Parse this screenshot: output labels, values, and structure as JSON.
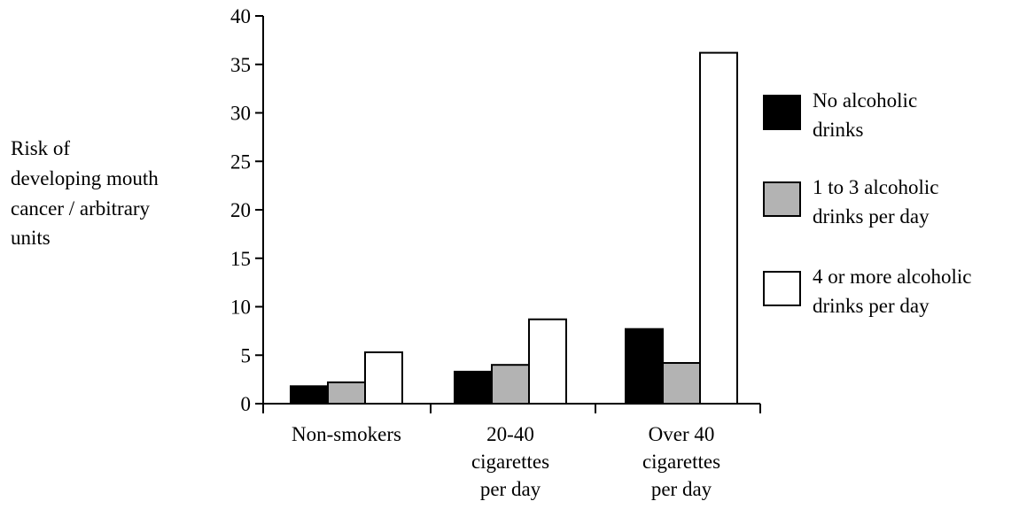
{
  "chart_data": {
    "type": "bar",
    "categories": [
      [
        "Non-smokers"
      ],
      [
        "20-40",
        "cigarettes",
        "per day"
      ],
      [
        "Over 40",
        "cigarettes",
        "per day"
      ]
    ],
    "series": [
      {
        "name": [
          "No alcoholic",
          "drinks"
        ],
        "color": "#000000",
        "values": [
          1.8,
          3.3,
          7.7
        ]
      },
      {
        "name": [
          "1 to 3 alcoholic",
          "drinks per day"
        ],
        "color": "#b3b3b3",
        "values": [
          2.2,
          4.0,
          4.2
        ]
      },
      {
        "name": [
          "4 or more alcoholic",
          "drinks per day"
        ],
        "color": "#ffffff",
        "values": [
          5.3,
          8.7,
          36.2
        ]
      }
    ],
    "ylabel": [
      "Risk of",
      "developing mouth",
      "cancer / arbitrary",
      "units"
    ],
    "ylim": [
      0,
      40
    ],
    "yticks": [
      "0",
      "5",
      "10",
      "15",
      "20",
      "25",
      "30",
      "35",
      "40"
    ],
    "legend_position": "right",
    "grid": false
  }
}
